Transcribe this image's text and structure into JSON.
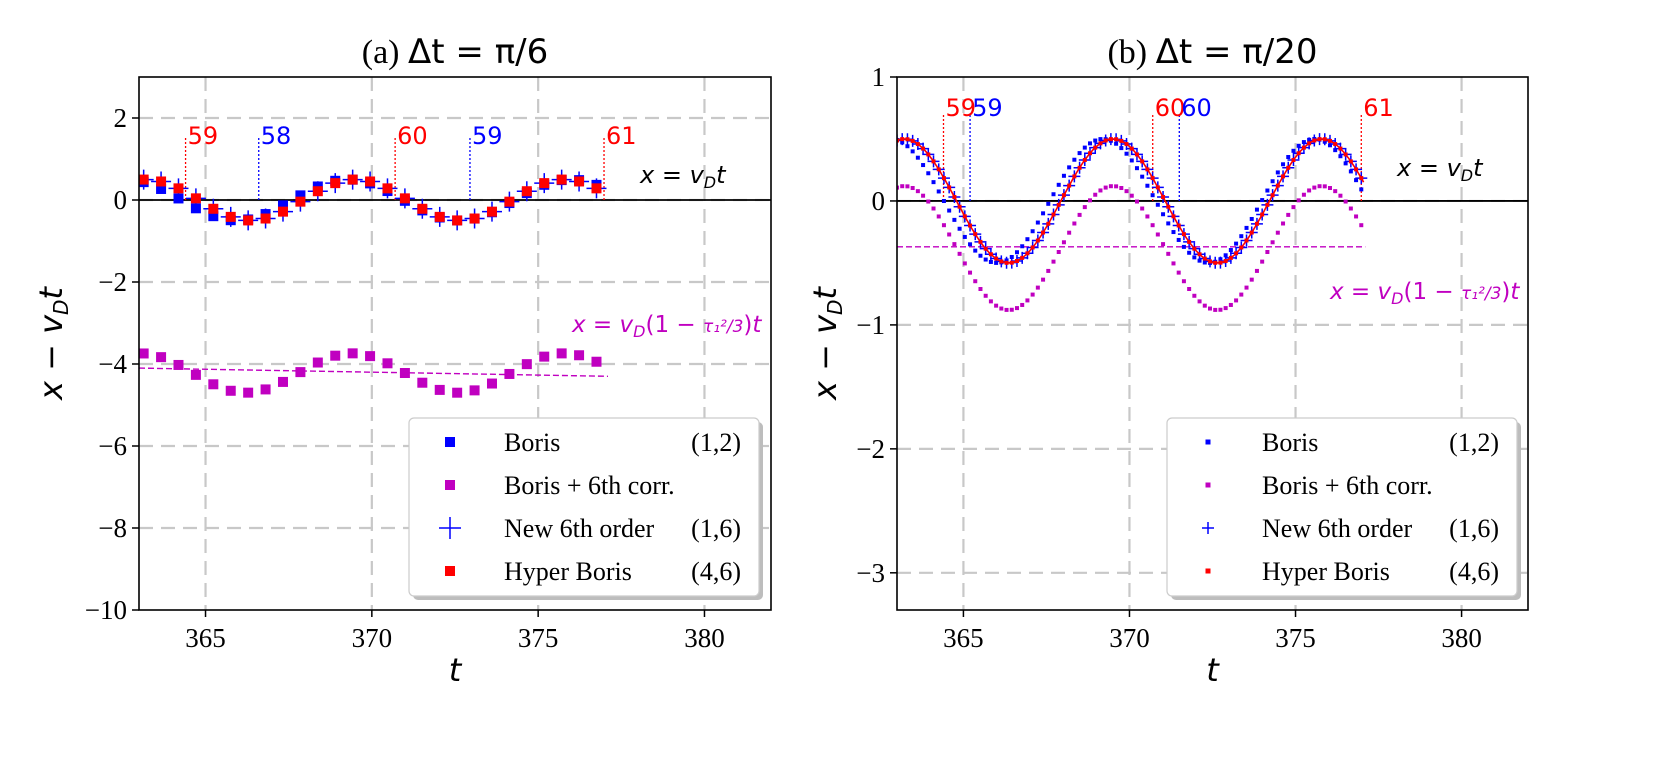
{
  "chart_data": [
    {
      "id": "a",
      "type": "scatter",
      "title_prefix": "(a)",
      "title_math": "Δt = π/6",
      "xlabel": "t",
      "ylabel": "x − v_D t",
      "xlim": [
        363,
        382
      ],
      "ylim": [
        -10,
        3
      ],
      "xticks": [
        365,
        370,
        375,
        380
      ],
      "yticks": [
        2,
        0,
        -2,
        -4,
        -6,
        -8,
        -10
      ],
      "ytick_labels": [
        "2",
        "0",
        "−2",
        "−4",
        "−6",
        "−8",
        "−10"
      ],
      "grid": true,
      "dt": 0.5236,
      "t_start": 363.14,
      "n_points": 28,
      "omega": 1.0,
      "series": [
        {
          "name": "Boris",
          "order": "(1,2)",
          "color": "#0000ff",
          "marker": "square",
          "offset": 0,
          "amplitude": 0.5,
          "phase": 1.95,
          "omega": 0.94
        },
        {
          "name": "Boris + 6th corr.",
          "order": "",
          "color": "#c000c0",
          "marker": "square",
          "offset": -4.22,
          "amplitude": 0.48,
          "phase": 1.55,
          "omega": 0.985
        },
        {
          "name": "New 6th order",
          "order": "(1,6)",
          "color": "#0000ff",
          "marker": "plus",
          "offset": 0,
          "amplitude": 0.5,
          "phase": 1.35,
          "omega": 1.0
        },
        {
          "name": "Hyper Boris",
          "order": "(4,6)",
          "color": "#ff0000",
          "marker": "square",
          "offset": 0,
          "amplitude": 0.5,
          "phase": 1.35,
          "omega": 1.0
        }
      ],
      "reference_lines": [
        {
          "label": "x = v_D t",
          "color": "#000000",
          "y_start": 0,
          "y_end": 0,
          "x_start": 363,
          "x_end": 382
        },
        {
          "label": "x = v_D (1 − τ₁²/3) t",
          "color": "#c000c0",
          "y_start": -4.1,
          "y_end": -4.3,
          "x_start": 363,
          "x_end": 377.1
        }
      ],
      "markers_period": [
        {
          "label": "59",
          "t": 364.4,
          "color": "#ff0000"
        },
        {
          "label": "58",
          "t": 366.6,
          "color": "#0000ff"
        },
        {
          "label": "60",
          "t": 370.7,
          "color": "#ff0000"
        },
        {
          "label": "59",
          "t": 372.95,
          "color": "#0000ff"
        },
        {
          "label": "61",
          "t": 376.98,
          "color": "#ff0000"
        }
      ],
      "legend_position": "lower-right"
    },
    {
      "id": "b",
      "type": "scatter",
      "title_prefix": "(b)",
      "title_math": "Δt = π/20",
      "xlabel": "t",
      "ylabel": "x − v_D t",
      "xlim": [
        363,
        382
      ],
      "ylim": [
        -3.3,
        1
      ],
      "xticks": [
        365,
        370,
        375,
        380
      ],
      "yticks": [
        1,
        0,
        -1,
        -2,
        -3
      ],
      "ytick_labels": [
        "1",
        "0",
        "−1",
        "−2",
        "−3"
      ],
      "grid": true,
      "dt": 0.15708,
      "t_start": 363.0,
      "n_points": 90,
      "omega": 1.0,
      "series": [
        {
          "name": "Boris",
          "order": "(1,2)",
          "color": "#0000ff",
          "marker": "square",
          "offset": 0,
          "amplitude": 0.5,
          "phase": 1.75,
          "omega": 0.985
        },
        {
          "name": "Boris + 6th corr.",
          "order": "",
          "color": "#c000c0",
          "marker": "square",
          "offset": -0.38,
          "amplitude": 0.5,
          "phase": 1.35,
          "omega": 1.0
        },
        {
          "name": "New 6th order",
          "order": "(1,6)",
          "color": "#0000ff",
          "marker": "plus",
          "offset": 0,
          "amplitude": 0.5,
          "phase": 1.35,
          "omega": 1.0
        },
        {
          "name": "Hyper Boris",
          "order": "(4,6)",
          "color": "#ff0000",
          "marker": "square",
          "offset": 0,
          "amplitude": 0.5,
          "phase": 1.35,
          "omega": 1.0
        }
      ],
      "reference_lines": [
        {
          "label": "x = v_D t",
          "color": "#000000",
          "y_start": 0,
          "y_end": 0,
          "x_start": 363,
          "x_end": 382
        },
        {
          "label": "x = v_D (1 − τ₁²/3) t",
          "color": "#c000c0",
          "y_start": -0.37,
          "y_end": -0.37,
          "x_start": 363,
          "x_end": 377.1
        }
      ],
      "markers_period": [
        {
          "label": "59",
          "t": 364.4,
          "color": "#ff0000"
        },
        {
          "label": "59",
          "t": 365.2,
          "color": "#0000ff"
        },
        {
          "label": "60",
          "t": 370.7,
          "color": "#ff0000"
        },
        {
          "label": "60",
          "t": 371.5,
          "color": "#0000ff"
        },
        {
          "label": "61",
          "t": 376.98,
          "color": "#ff0000"
        }
      ],
      "legend_position": "lower-right"
    }
  ]
}
